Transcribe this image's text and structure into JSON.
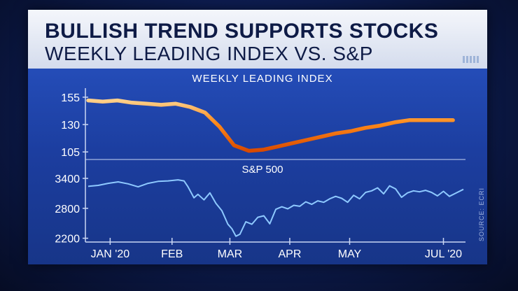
{
  "title": "BULLISH TREND SUPPORTS STOCKS",
  "subtitle": "WEEKLY LEADING INDEX VS. S&P",
  "source": "SOURCE: ECRI",
  "colors": {
    "leading_index_line": "#ff6a00",
    "leading_index_highlight": "#ffd08a",
    "sp500_line": "#8ec9ff",
    "background_panel": "#1f45ad",
    "header_band": "#e6ebf5",
    "text": "#ffffff"
  },
  "chart_data": [
    {
      "type": "line",
      "title": "WEEKLY LEADING INDEX",
      "ylim": [
        100,
        162
      ],
      "yticks": [
        105,
        130,
        155
      ],
      "xlim": [
        0,
        180
      ],
      "grid": false,
      "series": [
        {
          "x": [
            0,
            7,
            14,
            21,
            28,
            35,
            42,
            49,
            56,
            63,
            70,
            77,
            84,
            91,
            98,
            105,
            112,
            119,
            126,
            133,
            140,
            147,
            154,
            161,
            168,
            175
          ],
          "values": [
            152,
            151,
            152,
            150,
            149,
            148,
            149,
            146,
            141,
            128,
            111,
            106,
            107,
            110,
            113,
            116,
            119,
            122,
            124,
            127,
            129,
            132,
            134,
            134,
            134,
            134
          ]
        }
      ]
    },
    {
      "type": "line",
      "title": "S&P 500",
      "ylim": [
        2180,
        3470
      ],
      "yticks": [
        2200,
        2800,
        3400
      ],
      "xlim": [
        0,
        188
      ],
      "grid": false,
      "xtick_labels": [
        "JAN '20",
        "FEB",
        "MAR",
        "APR",
        "MAY",
        "JUL '20"
      ],
      "xtick_positions": [
        11,
        42,
        71,
        101,
        131,
        178
      ],
      "series": [
        {
          "x": [
            0,
            5,
            10,
            15,
            20,
            25,
            30,
            35,
            40,
            45,
            48,
            50,
            53,
            55,
            58,
            61,
            64,
            67,
            70,
            72,
            74,
            76,
            79,
            82,
            85,
            88,
            91,
            94,
            97,
            100,
            103,
            106,
            109,
            112,
            115,
            118,
            121,
            124,
            127,
            130,
            133,
            136,
            139,
            142,
            145,
            148,
            151,
            154,
            157,
            160,
            163,
            166,
            169,
            172,
            175,
            178,
            181,
            184,
            188
          ],
          "values": [
            3240,
            3260,
            3300,
            3330,
            3290,
            3230,
            3300,
            3340,
            3350,
            3370,
            3350,
            3230,
            3010,
            3080,
            2970,
            3110,
            2900,
            2750,
            2480,
            2390,
            2240,
            2280,
            2530,
            2480,
            2620,
            2650,
            2490,
            2780,
            2830,
            2790,
            2860,
            2840,
            2930,
            2880,
            2950,
            2920,
            2990,
            3040,
            3000,
            2920,
            3060,
            2990,
            3120,
            3150,
            3210,
            3090,
            3250,
            3190,
            3020,
            3110,
            3150,
            3130,
            3160,
            3120,
            3050,
            3140,
            3040,
            3100,
            3180
          ]
        }
      ]
    }
  ]
}
